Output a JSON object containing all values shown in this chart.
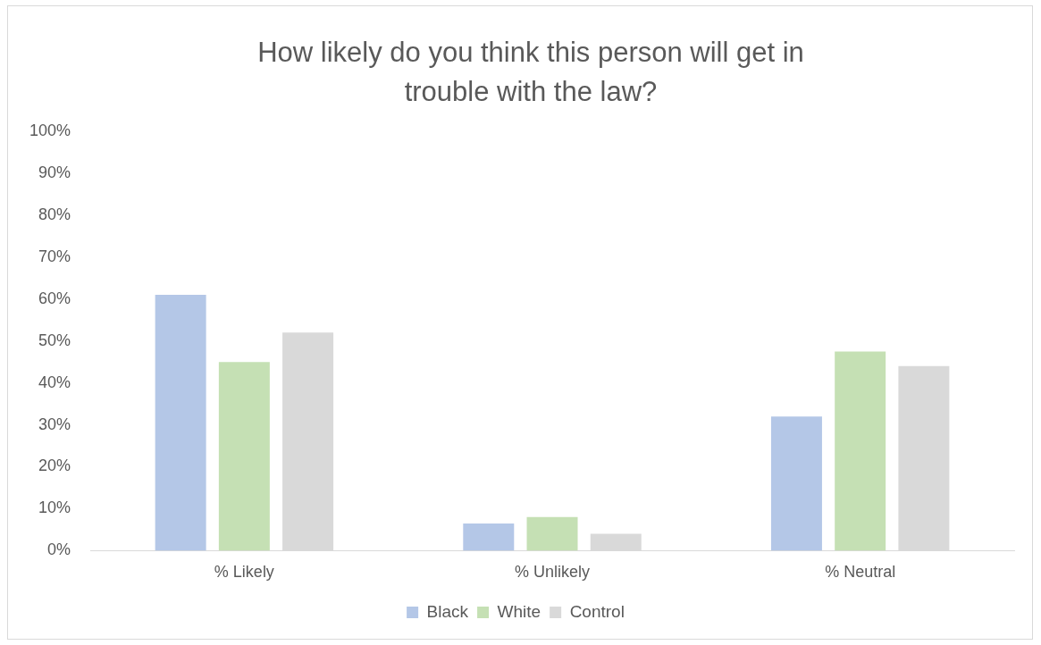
{
  "chart_data": {
    "type": "bar",
    "title": "How likely do you think this person will get in trouble with the law?",
    "categories": [
      "% Likely",
      "% Unlikely",
      "% Neutral"
    ],
    "series": [
      {
        "name": "Black",
        "color": "#b4c7e7",
        "values": [
          61,
          6.5,
          32
        ]
      },
      {
        "name": "White",
        "color": "#c5e0b4",
        "values": [
          45,
          8,
          47.5
        ]
      },
      {
        "name": "Control",
        "color": "#d9d9d9",
        "values": [
          52,
          4,
          44
        ]
      }
    ],
    "ylim": [
      0,
      100
    ],
    "yticks": [
      {
        "value": 0,
        "label": "0%"
      },
      {
        "value": 10,
        "label": "10%"
      },
      {
        "value": 20,
        "label": "20%"
      },
      {
        "value": 30,
        "label": "30%"
      },
      {
        "value": 40,
        "label": "40%"
      },
      {
        "value": 50,
        "label": "50%"
      },
      {
        "value": 60,
        "label": "60%"
      },
      {
        "value": 70,
        "label": "70%"
      },
      {
        "value": 80,
        "label": "80%"
      },
      {
        "value": 90,
        "label": "90%"
      },
      {
        "value": 100,
        "label": "100%"
      }
    ],
    "grid": false,
    "legend": "bottom"
  }
}
